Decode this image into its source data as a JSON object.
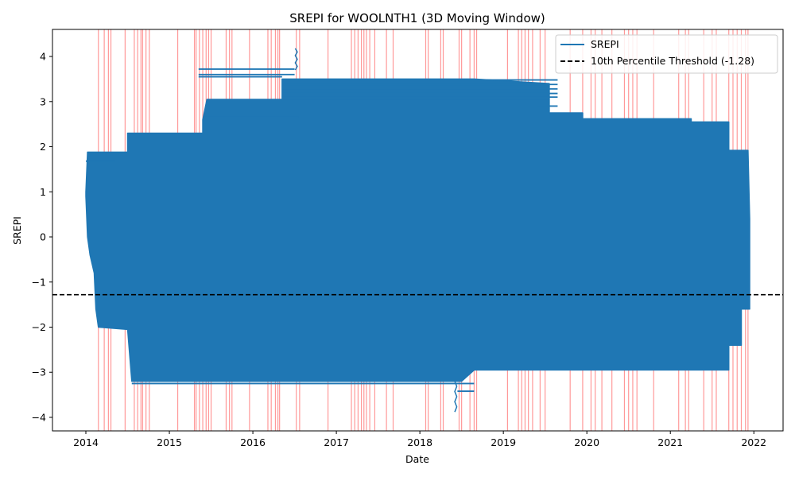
{
  "chart_data": {
    "type": "line",
    "title": "SREPI for WOOLNTH1 (3D Moving Window)",
    "xlabel": "Date",
    "ylabel": "SREPI",
    "xlim": [
      2013.6,
      2022.35
    ],
    "ylim": [
      -4.3,
      4.6
    ],
    "x_ticks": [
      2014,
      2015,
      2016,
      2017,
      2018,
      2019,
      2020,
      2021,
      2022
    ],
    "x_tick_labels": [
      "2014",
      "2015",
      "2016",
      "2017",
      "2018",
      "2019",
      "2020",
      "2021",
      "2022"
    ],
    "y_ticks": [
      -4,
      -3,
      -2,
      -1,
      0,
      1,
      2,
      3,
      4
    ],
    "y_tick_labels": [
      "−4",
      "−3",
      "−2",
      "−1",
      "0",
      "1",
      "2",
      "3",
      "4"
    ],
    "grid": false,
    "legend_position": "top-right",
    "series": [
      {
        "name": "SREPI",
        "color": "#1f77b4",
        "envelope": [
          {
            "x": 2014.0,
            "low": 0.9,
            "high": 1.0
          },
          {
            "x": 2014.02,
            "low": 0.0,
            "high": 1.88
          },
          {
            "x": 2014.05,
            "low": -0.4,
            "high": 1.88
          },
          {
            "x": 2014.1,
            "low": -0.8,
            "high": 1.88
          },
          {
            "x": 2014.12,
            "low": -1.6,
            "high": 1.88
          },
          {
            "x": 2014.15,
            "low": -2.0,
            "high": 1.88
          },
          {
            "x": 2014.5,
            "low": -2.05,
            "high": 1.88
          },
          {
            "x": 2014.5,
            "low": -2.05,
            "high": 2.3
          },
          {
            "x": 2014.55,
            "low": -3.2,
            "high": 2.3
          },
          {
            "x": 2015.4,
            "low": -3.2,
            "high": 2.3
          },
          {
            "x": 2015.4,
            "low": -3.2,
            "high": 2.6
          },
          {
            "x": 2015.45,
            "low": -3.2,
            "high": 3.05
          },
          {
            "x": 2016.35,
            "low": -3.2,
            "high": 3.05
          },
          {
            "x": 2016.35,
            "low": -3.2,
            "high": 3.5
          },
          {
            "x": 2018.5,
            "low": -3.2,
            "high": 3.5
          },
          {
            "x": 2018.65,
            "low": -2.95,
            "high": 3.5
          },
          {
            "x": 2019.55,
            "low": -2.95,
            "high": 3.4
          },
          {
            "x": 2019.55,
            "low": -2.95,
            "high": 2.75
          },
          {
            "x": 2019.95,
            "low": -2.95,
            "high": 2.75
          },
          {
            "x": 2019.95,
            "low": -2.95,
            "high": 2.62
          },
          {
            "x": 2021.25,
            "low": -2.95,
            "high": 2.62
          },
          {
            "x": 2021.25,
            "low": -2.95,
            "high": 2.55
          },
          {
            "x": 2021.7,
            "low": -2.95,
            "high": 2.55
          },
          {
            "x": 2021.7,
            "low": -2.4,
            "high": 1.92
          },
          {
            "x": 2021.85,
            "low": -2.4,
            "high": 1.92
          },
          {
            "x": 2021.85,
            "low": -1.6,
            "high": 1.92
          },
          {
            "x": 2021.93,
            "low": -1.6,
            "high": 1.92
          },
          {
            "x": 2021.95,
            "low": -1.6,
            "high": 0.4
          }
        ],
        "horizontal_segments": [
          {
            "y": 3.72,
            "x0": 2015.35,
            "x1": 2016.5
          },
          {
            "y": 3.6,
            "x0": 2015.35,
            "x1": 2016.5
          },
          {
            "y": 3.55,
            "x0": 2015.35,
            "x1": 2016.35
          },
          {
            "y": 3.48,
            "x0": 2016.35,
            "x1": 2019.65
          },
          {
            "y": 3.38,
            "x0": 2016.35,
            "x1": 2019.65
          },
          {
            "y": 3.28,
            "x0": 2016.35,
            "x1": 2019.65
          },
          {
            "y": 3.18,
            "x0": 2016.35,
            "x1": 2019.65
          },
          {
            "y": 3.1,
            "x0": 2016.35,
            "x1": 2019.65
          },
          {
            "y": 3.02,
            "x0": 2016.35,
            "x1": 2019.55
          },
          {
            "y": 2.9,
            "x0": 2019.4,
            "x1": 2019.65
          },
          {
            "y": 2.65,
            "x0": 2015.4,
            "x1": 2016.55
          },
          {
            "y": 1.68,
            "x0": 2014.0,
            "x1": 2014.35
          },
          {
            "y": -3.25,
            "x0": 2014.55,
            "x1": 2018.65
          },
          {
            "y": -3.42,
            "x0": 2018.45,
            "x1": 2018.65
          }
        ],
        "spikes": [
          {
            "x": 2016.52,
            "low": 3.7,
            "high": 4.18
          },
          {
            "x": 2018.43,
            "low": -3.88,
            "high": -3.2
          }
        ]
      }
    ],
    "threshold": {
      "label": "10th Percentile Threshold (-1.28)",
      "value": -1.28,
      "color": "#000000",
      "style": "dashed"
    },
    "event_lines": {
      "color": "#ff0000",
      "x": [
        2014.15,
        2014.22,
        2014.27,
        2014.3,
        2014.47,
        2014.58,
        2014.62,
        2014.66,
        2014.68,
        2014.72,
        2014.76,
        2015.1,
        2015.3,
        2015.32,
        2015.36,
        2015.4,
        2015.44,
        2015.47,
        2015.5,
        2015.68,
        2015.72,
        2015.75,
        2015.96,
        2016.18,
        2016.22,
        2016.27,
        2016.3,
        2016.32,
        2016.52,
        2016.56,
        2016.9,
        2017.18,
        2017.22,
        2017.26,
        2017.3,
        2017.33,
        2017.36,
        2017.4,
        2017.46,
        2017.6,
        2017.68,
        2018.07,
        2018.1,
        2018.25,
        2018.28,
        2018.47,
        2018.5,
        2018.6,
        2018.65,
        2018.68,
        2019.05,
        2019.18,
        2019.22,
        2019.26,
        2019.3,
        2019.35,
        2019.44,
        2019.5,
        2019.8,
        2019.95,
        2020.05,
        2020.1,
        2020.18,
        2020.3,
        2020.45,
        2020.5,
        2020.55,
        2020.6,
        2020.8,
        2021.1,
        2021.18,
        2021.22,
        2021.4,
        2021.5,
        2021.55,
        2021.7,
        2021.75,
        2021.8,
        2021.85,
        2021.9,
        2021.93
      ]
    }
  }
}
